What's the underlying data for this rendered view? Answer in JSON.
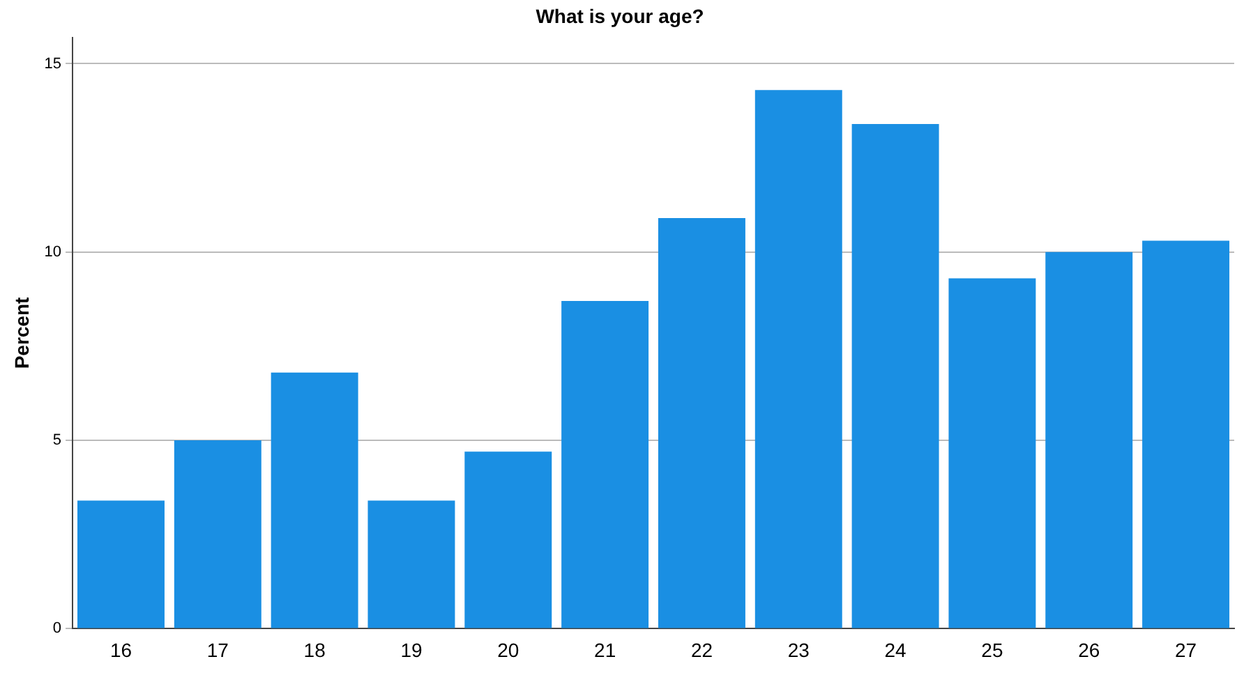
{
  "chart_data": {
    "type": "bar",
    "title": "What is your age?",
    "ylabel": "Percent",
    "categories": [
      "16",
      "17",
      "18",
      "19",
      "20",
      "21",
      "22",
      "23",
      "24",
      "25",
      "26",
      "27"
    ],
    "values": [
      3.4,
      5.0,
      6.8,
      3.4,
      4.7,
      8.7,
      10.9,
      14.3,
      13.4,
      9.3,
      10.0,
      10.3
    ],
    "color": "#1a8fe3",
    "ylim": [
      0,
      15.7
    ],
    "yticks": [
      0,
      5,
      10,
      15
    ],
    "grid": "y",
    "legend": false
  }
}
